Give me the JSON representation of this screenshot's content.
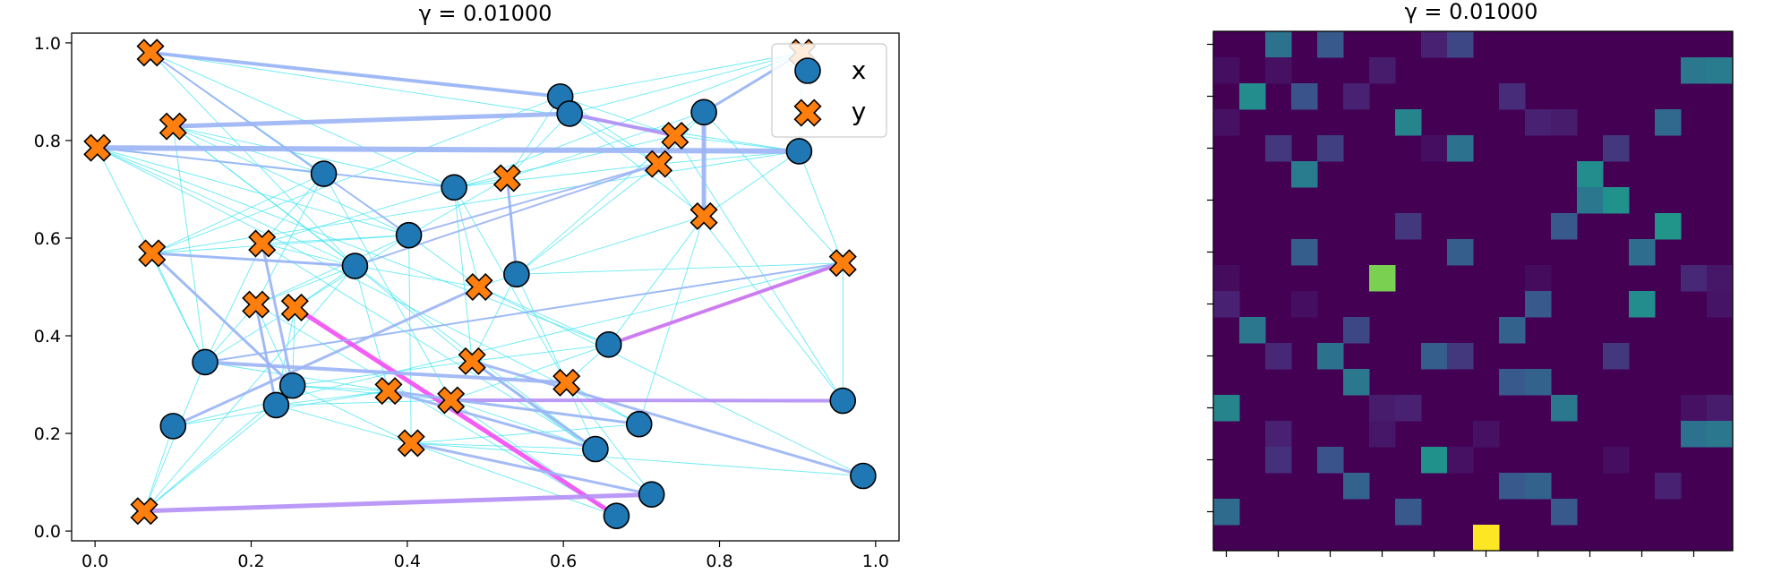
{
  "chart_data": [
    {
      "type": "scatter",
      "title": "γ = 0.01000",
      "xlim": [
        -0.03,
        1.03
      ],
      "ylim": [
        -0.02,
        1.02
      ],
      "x_ticks": [
        0.0,
        0.2,
        0.4,
        0.6,
        0.8,
        1.0
      ],
      "y_ticks": [
        0.0,
        0.2,
        0.4,
        0.6,
        0.8,
        1.0
      ],
      "x_tick_labels": [
        "0.0",
        "0.2",
        "0.4",
        "0.6",
        "0.8",
        "1.0"
      ],
      "y_tick_labels": [
        "0.0",
        "0.2",
        "0.4",
        "0.6",
        "0.8",
        "1.0"
      ],
      "legend": {
        "placement": "top-right",
        "entries": [
          "x",
          "y"
        ]
      },
      "grid": false,
      "series": [
        {
          "name": "x",
          "marker": "circle",
          "color": "#1f77b4",
          "points": [
            [
              0.596,
              0.89
            ],
            [
              0.608,
              0.855
            ],
            [
              0.78,
              0.858
            ],
            [
              0.902,
              0.778
            ],
            [
              0.293,
              0.732
            ],
            [
              0.46,
              0.704
            ],
            [
              0.402,
              0.606
            ],
            [
              0.333,
              0.543
            ],
            [
              0.54,
              0.526
            ],
            [
              0.658,
              0.382
            ],
            [
              0.141,
              0.346
            ],
            [
              0.253,
              0.298
            ],
            [
              0.232,
              0.258
            ],
            [
              0.1,
              0.215
            ],
            [
              0.697,
              0.219
            ],
            [
              0.958,
              0.267
            ],
            [
              0.641,
              0.168
            ],
            [
              0.984,
              0.113
            ],
            [
              0.713,
              0.075
            ],
            [
              0.668,
              0.031
            ]
          ]
        },
        {
          "name": "y",
          "marker": "X",
          "color": "#ff7f0e",
          "points": [
            [
              0.071,
              0.98
            ],
            [
              0.1,
              0.829
            ],
            [
              0.003,
              0.785
            ],
            [
              0.906,
              0.98
            ],
            [
              0.743,
              0.81
            ],
            [
              0.722,
              0.752
            ],
            [
              0.528,
              0.723
            ],
            [
              0.78,
              0.645
            ],
            [
              0.214,
              0.589
            ],
            [
              0.073,
              0.569
            ],
            [
              0.958,
              0.549
            ],
            [
              0.492,
              0.5
            ],
            [
              0.206,
              0.464
            ],
            [
              0.256,
              0.458
            ],
            [
              0.483,
              0.348
            ],
            [
              0.604,
              0.304
            ],
            [
              0.376,
              0.287
            ],
            [
              0.456,
              0.268
            ],
            [
              0.405,
              0.18
            ],
            [
              0.063,
              0.041
            ]
          ]
        }
      ],
      "strong_links": [
        [
          0,
          0,
          4,
          "#9bb4f5"
        ],
        [
          1,
          1,
          5,
          "#9bb4f5"
        ],
        [
          2,
          3,
          6,
          "#9bb4f5"
        ],
        [
          3,
          2,
          3,
          "#9bb4f5"
        ],
        [
          4,
          1,
          4,
          "#b48ef6"
        ],
        [
          5,
          6,
          2,
          "#9bb4f5"
        ],
        [
          6,
          8,
          3,
          "#9bb4f5"
        ],
        [
          7,
          2,
          5,
          "#9bb4f5"
        ],
        [
          8,
          11,
          3,
          "#9bb4f5"
        ],
        [
          9,
          7,
          3,
          "#9bb4f5"
        ],
        [
          10,
          9,
          4,
          "#cc70f0"
        ],
        [
          11,
          13,
          3,
          "#9bb4f5"
        ],
        [
          12,
          12,
          3,
          "#9bb4f5"
        ],
        [
          13,
          19,
          5,
          "#f34cf4"
        ],
        [
          14,
          17,
          3,
          "#9bb4f5"
        ],
        [
          15,
          10,
          4,
          "#9bb4f5"
        ],
        [
          16,
          16,
          3,
          "#9bb4f5"
        ],
        [
          17,
          15,
          4,
          "#b48ef6"
        ],
        [
          18,
          18,
          3,
          "#9bb4f5"
        ],
        [
          19,
          18,
          5,
          "#b48ef6"
        ],
        [
          16,
          14,
          3,
          "#9bb4f5"
        ],
        [
          14,
          16,
          3,
          "#9bb4f5"
        ],
        [
          9,
          11,
          3,
          "#9bb4f5"
        ],
        [
          5,
          7,
          2,
          "#9bb4f5"
        ],
        [
          2,
          5,
          2,
          "#9bb4f5"
        ],
        [
          0,
          6,
          2,
          "#9bb4f5"
        ],
        [
          10,
          10,
          2,
          "#9bb4f5"
        ]
      ]
    },
    {
      "type": "heatmap",
      "title": "γ = 0.01000",
      "colormap": "viridis",
      "grid_size": 20,
      "cells": [
        [
          0,
          2,
          0.38
        ],
        [
          0,
          4,
          0.28
        ],
        [
          0,
          8,
          0.12
        ],
        [
          0,
          9,
          0.22
        ],
        [
          1,
          0,
          0.05
        ],
        [
          1,
          2,
          0.06
        ],
        [
          1,
          6,
          0.1
        ],
        [
          1,
          18,
          0.4
        ],
        [
          1,
          19,
          0.42
        ],
        [
          2,
          1,
          0.48
        ],
        [
          2,
          3,
          0.26
        ],
        [
          2,
          5,
          0.12
        ],
        [
          2,
          11,
          0.15
        ],
        [
          3,
          0,
          0.06
        ],
        [
          3,
          7,
          0.45
        ],
        [
          3,
          12,
          0.12
        ],
        [
          3,
          13,
          0.1
        ],
        [
          3,
          17,
          0.34
        ],
        [
          4,
          2,
          0.18
        ],
        [
          4,
          4,
          0.2
        ],
        [
          4,
          8,
          0.05
        ],
        [
          4,
          9,
          0.38
        ],
        [
          4,
          15,
          0.18
        ],
        [
          5,
          3,
          0.42
        ],
        [
          5,
          14,
          0.48
        ],
        [
          6,
          14,
          0.4
        ],
        [
          6,
          15,
          0.5
        ],
        [
          7,
          7,
          0.18
        ],
        [
          7,
          13,
          0.28
        ],
        [
          7,
          17,
          0.52
        ],
        [
          8,
          3,
          0.3
        ],
        [
          8,
          9,
          0.3
        ],
        [
          8,
          16,
          0.36
        ],
        [
          9,
          0,
          0.04
        ],
        [
          9,
          6,
          0.8
        ],
        [
          9,
          12,
          0.04
        ],
        [
          9,
          18,
          0.14
        ],
        [
          9,
          19,
          0.08
        ],
        [
          10,
          0,
          0.12
        ],
        [
          10,
          3,
          0.05
        ],
        [
          10,
          12,
          0.28
        ],
        [
          10,
          16,
          0.48
        ],
        [
          10,
          19,
          0.07
        ],
        [
          11,
          1,
          0.4
        ],
        [
          11,
          5,
          0.22
        ],
        [
          11,
          11,
          0.32
        ],
        [
          12,
          2,
          0.14
        ],
        [
          12,
          4,
          0.38
        ],
        [
          12,
          8,
          0.3
        ],
        [
          12,
          9,
          0.18
        ],
        [
          12,
          15,
          0.18
        ],
        [
          13,
          5,
          0.4
        ],
        [
          13,
          11,
          0.28
        ],
        [
          13,
          12,
          0.32
        ],
        [
          14,
          0,
          0.45
        ],
        [
          14,
          6,
          0.1
        ],
        [
          14,
          7,
          0.12
        ],
        [
          14,
          13,
          0.4
        ],
        [
          14,
          18,
          0.06
        ],
        [
          14,
          19,
          0.1
        ],
        [
          15,
          2,
          0.12
        ],
        [
          15,
          6,
          0.08
        ],
        [
          15,
          10,
          0.06
        ],
        [
          15,
          18,
          0.38
        ],
        [
          15,
          19,
          0.4
        ],
        [
          16,
          2,
          0.16
        ],
        [
          16,
          4,
          0.26
        ],
        [
          16,
          8,
          0.5
        ],
        [
          16,
          9,
          0.06
        ],
        [
          16,
          15,
          0.05
        ],
        [
          17,
          5,
          0.32
        ],
        [
          17,
          11,
          0.28
        ],
        [
          17,
          12,
          0.32
        ],
        [
          17,
          17,
          0.12
        ],
        [
          18,
          0,
          0.35
        ],
        [
          18,
          7,
          0.28
        ],
        [
          18,
          13,
          0.28
        ],
        [
          19,
          10,
          1.0
        ]
      ]
    }
  ]
}
